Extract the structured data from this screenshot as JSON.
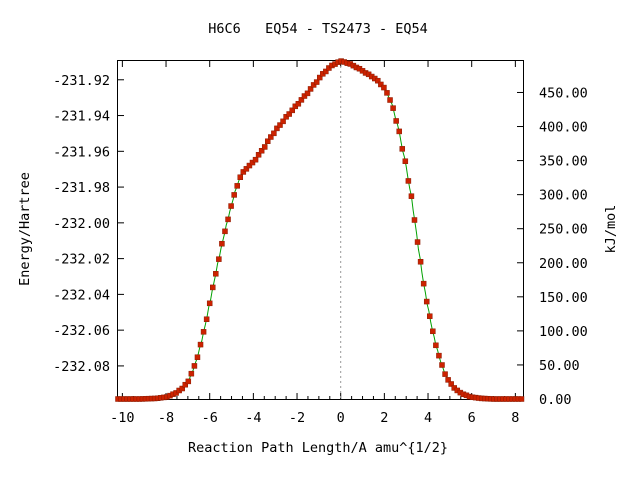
{
  "chart_data": {
    "type": "line",
    "title": "H6C6   EQ54 - TS2473 - EQ54",
    "xlabel": "Reaction Path Length/A amu^{1/2}",
    "ylabel": "Energy/Hartree",
    "y2label": "kJ/mol",
    "xlim": [
      -10.2,
      8.35
    ],
    "ylim": [
      -232.0985,
      -231.9095
    ],
    "y2lim": [
      0,
      496.2
    ],
    "x_ticks": [
      "-10",
      "-8",
      "-6",
      "-4",
      "-2",
      "0",
      "2",
      "4",
      "6",
      "8"
    ],
    "y_ticks": [
      "-231.92",
      "-231.94",
      "-231.96",
      "-231.98",
      "-232.00",
      "-232.02",
      "-232.04",
      "-232.06",
      "-232.08"
    ],
    "y2_ticks": [
      "0.00",
      "50.00",
      "100.00",
      "150.00",
      "200.00",
      "250.00",
      "300.00",
      "350.00",
      "400.00",
      "450.00"
    ],
    "ts_x": 0,
    "grid": false,
    "legend": "none",
    "colors": {
      "line": "#00a000",
      "marker": "#cc2200",
      "ts_line": "#999999"
    },
    "series": [
      {
        "points": [
          [
            -10.2,
            -232.0985
          ],
          [
            -9.2,
            -232.0985
          ],
          [
            -8.5,
            -232.0982
          ],
          [
            -8.0,
            -232.0975
          ],
          [
            -7.6,
            -232.0955
          ],
          [
            -7.3,
            -232.093
          ],
          [
            -7.0,
            -232.089
          ],
          [
            -6.8,
            -232.0835
          ],
          [
            -6.6,
            -232.0765
          ],
          [
            -6.4,
            -232.0675
          ],
          [
            -6.2,
            -232.057
          ],
          [
            -6.0,
            -232.045
          ],
          [
            -5.8,
            -232.033
          ],
          [
            -5.6,
            -232.021
          ],
          [
            -5.4,
            -232.01
          ],
          [
            -5.2,
            -231.9995
          ],
          [
            -5.0,
            -231.99
          ],
          [
            -4.8,
            -231.981
          ],
          [
            -4.6,
            -231.9745
          ],
          [
            -4.4,
            -231.9705
          ],
          [
            -4.0,
            -231.966
          ],
          [
            -3.6,
            -231.9595
          ],
          [
            -3.2,
            -231.952
          ],
          [
            -2.8,
            -231.9455
          ],
          [
            -2.4,
            -231.9395
          ],
          [
            -2.0,
            -231.934
          ],
          [
            -1.6,
            -231.9285
          ],
          [
            -1.2,
            -231.9225
          ],
          [
            -0.8,
            -231.9165
          ],
          [
            -0.4,
            -231.912
          ],
          [
            0.0,
            -231.9095
          ],
          [
            0.4,
            -231.911
          ],
          [
            0.8,
            -231.9135
          ],
          [
            1.2,
            -231.9165
          ],
          [
            1.6,
            -231.9195
          ],
          [
            2.0,
            -231.9245
          ],
          [
            2.3,
            -231.932
          ],
          [
            2.6,
            -231.945
          ],
          [
            2.9,
            -231.9625
          ],
          [
            3.2,
            -231.9825
          ],
          [
            3.4,
            -231.9995
          ],
          [
            3.6,
            -232.0175
          ],
          [
            3.8,
            -232.034
          ],
          [
            4.0,
            -232.0475
          ],
          [
            4.2,
            -232.06
          ],
          [
            4.4,
            -232.07
          ],
          [
            4.6,
            -232.0785
          ],
          [
            4.8,
            -232.085
          ],
          [
            5.0,
            -232.0895
          ],
          [
            5.3,
            -232.0935
          ],
          [
            5.6,
            -232.0958
          ],
          [
            6.0,
            -232.0975
          ],
          [
            6.5,
            -232.0982
          ],
          [
            7.0,
            -232.0985
          ],
          [
            8.35,
            -232.0985
          ]
        ]
      }
    ]
  }
}
